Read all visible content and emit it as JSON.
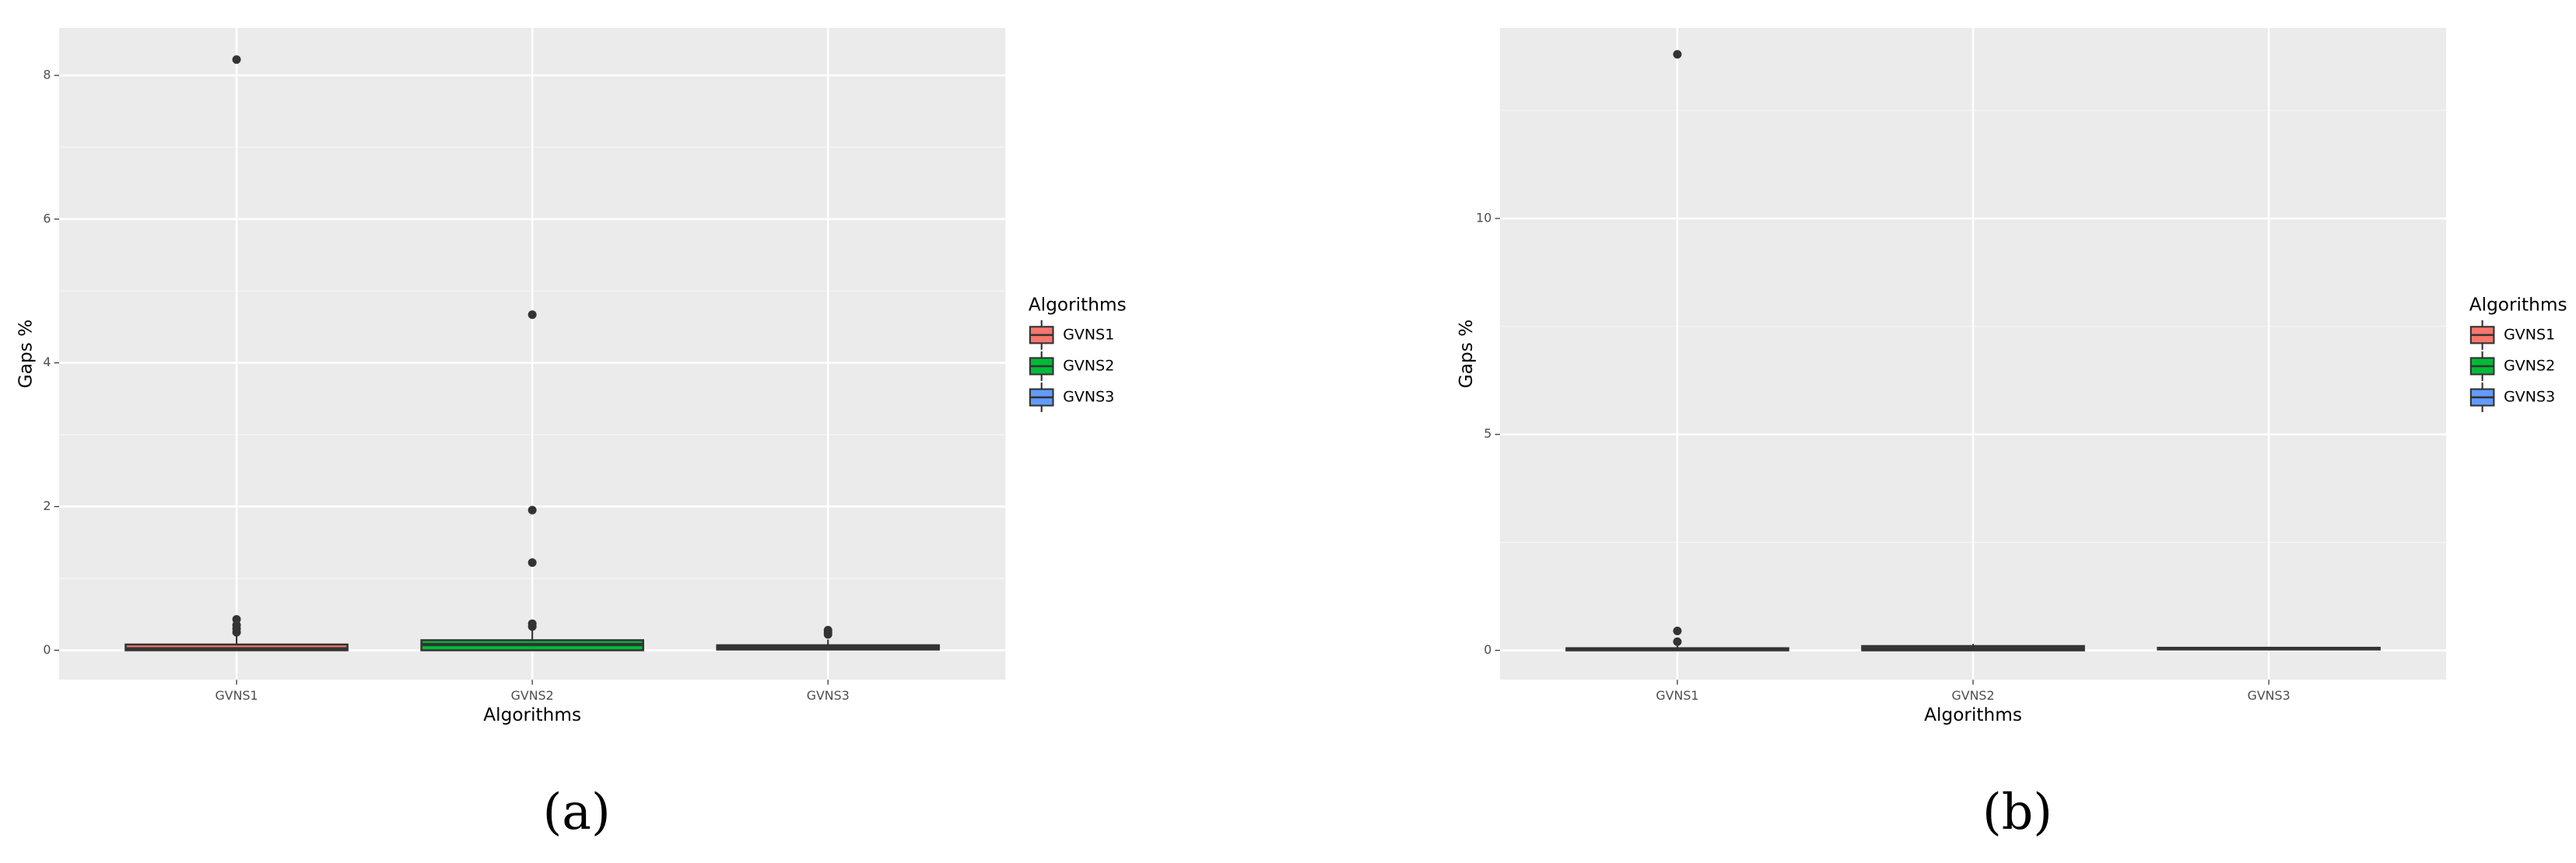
{
  "chart_data": [
    {
      "type": "box",
      "caption": "(a)",
      "xlabel": "Algorithms",
      "ylabel": "Gaps %",
      "legend_title": "Algorithms",
      "categories": [
        "GVNS1",
        "GVNS2",
        "GVNS3"
      ],
      "colors": [
        "#F8766D",
        "#00BA38",
        "#619CFF"
      ],
      "boxes": [
        {
          "min": 0,
          "q1": 0,
          "median": 0.02,
          "q3": 0.08,
          "max": 0.2,
          "outliers": [
            0.25,
            0.3,
            0.35,
            0.43,
            8.22
          ]
        },
        {
          "min": 0,
          "q1": 0,
          "median": 0.08,
          "q3": 0.14,
          "max": 0.3,
          "outliers": [
            0.33,
            0.37,
            1.22,
            1.95,
            4.67
          ]
        },
        {
          "min": 0,
          "q1": 0.01,
          "median": 0.04,
          "q3": 0.07,
          "max": 0.15,
          "outliers": [
            0.22,
            0.25,
            0.28
          ]
        }
      ],
      "ylim": [
        -0.41,
        8.66
      ],
      "yticks": [
        0,
        2,
        4,
        6,
        8
      ],
      "minor_yticks": [
        1,
        3,
        5,
        7
      ],
      "grid": true
    },
    {
      "type": "box",
      "caption": "(b)",
      "xlabel": "Algorithms",
      "ylabel": "Gaps %",
      "legend_title": "Algorithms",
      "categories": [
        "GVNS1",
        "GVNS2",
        "GVNS3"
      ],
      "colors": [
        "#F8766D",
        "#00BA38",
        "#619CFF"
      ],
      "boxes": [
        {
          "min": 0,
          "q1": 0,
          "median": 0.02,
          "q3": 0.05,
          "max": 0.1,
          "outliers": [
            0.2,
            0.45,
            13.8
          ]
        },
        {
          "min": 0,
          "q1": 0,
          "median": 0.04,
          "q3": 0.1,
          "max": 0.15,
          "outliers": []
        },
        {
          "min": 0,
          "q1": 0.02,
          "median": 0.04,
          "q3": 0.06,
          "max": 0.08,
          "outliers": []
        }
      ],
      "ylim": [
        -0.68,
        14.41
      ],
      "yticks": [
        0,
        5,
        10
      ],
      "minor_yticks": [
        2.5,
        7.5,
        12.5
      ],
      "grid": true
    }
  ]
}
